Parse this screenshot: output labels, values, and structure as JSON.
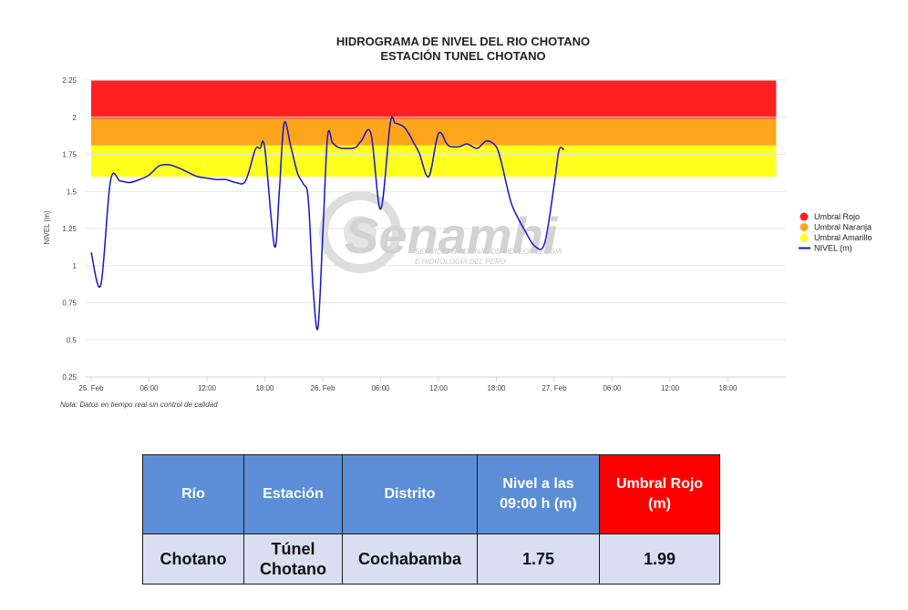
{
  "chart_data": {
    "type": "line",
    "title": "HIDROGRAMA DE NIVEL DEL RIO CHOTANO",
    "subtitle": "ESTACIÓN TUNEL CHOTANO",
    "ylabel": "NIVEL (m)",
    "ylim": [
      0.25,
      2.25
    ],
    "yticks": [
      "0.25",
      "0.5",
      "0.75",
      "1",
      "1.25",
      "1.5",
      "1.75",
      "2",
      "2.25"
    ],
    "xlim": [
      0,
      72
    ],
    "xticks": [
      {
        "label": "25. Feb",
        "hour": 0
      },
      {
        "label": "06:00",
        "hour": 6
      },
      {
        "label": "12:00",
        "hour": 12
      },
      {
        "label": "18:00",
        "hour": 18
      },
      {
        "label": "26. Feb",
        "hour": 24
      },
      {
        "label": "06:00",
        "hour": 30
      },
      {
        "label": "12:00",
        "hour": 36
      },
      {
        "label": "18:00",
        "hour": 42
      },
      {
        "label": "27. Feb",
        "hour": 48
      },
      {
        "label": "06:00",
        "hour": 54
      },
      {
        "label": "12:00",
        "hour": 60
      },
      {
        "label": "18:00",
        "hour": 66
      }
    ],
    "bands": [
      {
        "name": "Umbral Rojo",
        "from": 1.99,
        "to": 2.25,
        "color": "#ff2020"
      },
      {
        "name": "Umbral Naranja",
        "from": 1.81,
        "to": 1.99,
        "color": "#ffa51c"
      },
      {
        "name": "Umbral Amarillo",
        "from": 1.6,
        "to": 1.81,
        "color": "#ffff1e"
      }
    ],
    "band_xrange": [
      0,
      71
    ],
    "series": [
      {
        "name": "NIVEL (m)",
        "color": "#1414cc",
        "x": [
          0,
          1,
          2.0,
          3,
          4,
          5,
          6,
          7,
          8,
          9,
          10,
          11,
          12,
          13,
          14,
          15,
          16,
          17,
          17.5,
          18,
          19,
          19.5,
          20,
          20.7,
          21.4,
          22,
          22.5,
          23,
          23.5,
          24,
          24.5,
          25,
          25.5,
          26,
          26.5,
          27,
          27.5,
          28,
          29,
          30,
          31,
          31.5,
          32,
          32.5,
          33,
          33.5,
          34,
          35,
          36,
          37,
          38,
          38.5,
          39,
          40,
          41,
          42,
          42.5,
          43,
          43.5,
          44,
          45,
          46,
          47,
          48,
          48.5,
          49
        ],
        "y": [
          1.09,
          0.87,
          1.57,
          1.57,
          1.56,
          1.58,
          1.61,
          1.67,
          1.68,
          1.66,
          1.63,
          1.6,
          1.59,
          1.58,
          1.58,
          1.56,
          1.57,
          1.78,
          1.79,
          1.79,
          1.13,
          1.5,
          1.96,
          1.8,
          1.62,
          1.55,
          1.45,
          0.85,
          0.58,
          1.2,
          1.87,
          1.83,
          1.8,
          1.79,
          1.79,
          1.79,
          1.8,
          1.84,
          1.89,
          1.38,
          1.96,
          1.96,
          1.95,
          1.93,
          1.88,
          1.82,
          1.76,
          1.6,
          1.89,
          1.81,
          1.8,
          1.81,
          1.82,
          1.79,
          1.84,
          1.8,
          1.7,
          1.56,
          1.43,
          1.35,
          1.23,
          1.13,
          1.15,
          1.55,
          1.78,
          1.78
        ]
      }
    ],
    "legend": [
      "Umbral Rojo",
      "Umbral Naranja",
      "Umbral Amarillo",
      "NIVEL (m)"
    ],
    "legend_position": "right",
    "grid": "horizontal"
  },
  "note": "Nota: Datos en tiempo real sin control de calidad",
  "watermark": {
    "name": "Senamhi",
    "line1": "SERVICIO NACIONAL DE METEOROLOGÍA",
    "line2": "E HIDROLOGÍA DEL PERÚ"
  },
  "table": {
    "headers": [
      "Río",
      "Estación",
      "Distrito",
      "Nivel a las 09:00 h (m)",
      "Umbral Rojo (m)"
    ],
    "row": [
      "Chotano",
      "Túnel Chotano",
      "Cochabamba",
      "1.75",
      "1.99"
    ]
  }
}
